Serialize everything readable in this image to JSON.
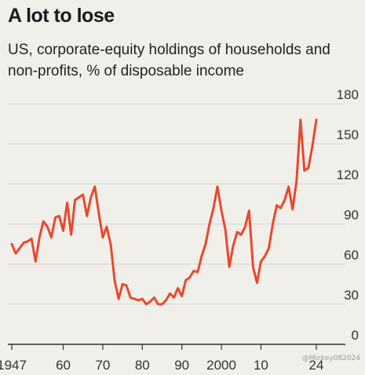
{
  "header": {
    "title": "A lot to lose",
    "subtitle": "US, corporate-equity holdings of households and non-profits, % of disposable income"
  },
  "watermark": "@Mickey082024",
  "colors": {
    "line": "#e8492e",
    "grid": "#d6d6d6",
    "axis": "#333333",
    "background": "#f1efea"
  },
  "chart_data": {
    "type": "line",
    "title": "A lot to lose",
    "subtitle": "US, corporate-equity holdings of households and non-profits, % of disposable income",
    "xlabel": "",
    "ylabel": "",
    "xlim": [
      1946,
      2025
    ],
    "ylim": [
      0,
      180
    ],
    "y_ticks": [
      0,
      30,
      60,
      90,
      120,
      150,
      180
    ],
    "y_axis_side": "right",
    "x_ticks": [
      {
        "value": 1947,
        "label": "1947"
      },
      {
        "value": 1960,
        "label": "60"
      },
      {
        "value": 1970,
        "label": "70"
      },
      {
        "value": 1980,
        "label": "80"
      },
      {
        "value": 1990,
        "label": "90"
      },
      {
        "value": 2000,
        "label": "2000"
      },
      {
        "value": 2010,
        "label": "10"
      },
      {
        "value": 2024,
        "label": "24"
      }
    ],
    "grid": "horizontal",
    "series": [
      {
        "x": [
          1947,
          1948,
          1949,
          1950,
          1951,
          1952,
          1953,
          1954,
          1955,
          1956,
          1957,
          1958,
          1959,
          1960,
          1961,
          1962,
          1963,
          1964,
          1965,
          1966,
          1967,
          1968,
          1969,
          1970,
          1971,
          1972,
          1973,
          1974,
          1975,
          1976,
          1977,
          1978,
          1979,
          1980,
          1981,
          1982,
          1983,
          1984,
          1985,
          1986,
          1987,
          1988,
          1989,
          1990,
          1991,
          1992,
          1993,
          1994,
          1995,
          1996,
          1997,
          1998,
          1999,
          2000,
          2001,
          2002,
          2003,
          2004,
          2005,
          2006,
          2007,
          2008,
          2009,
          2010,
          2011,
          2012,
          2013,
          2014,
          2015,
          2016,
          2017,
          2018,
          2019,
          2020,
          2021,
          2022,
          2023,
          2024
        ],
        "values": [
          75,
          68,
          72,
          76,
          77,
          79,
          62,
          80,
          92,
          88,
          80,
          95,
          96,
          85,
          106,
          82,
          108,
          110,
          112,
          96,
          110,
          118,
          98,
          80,
          88,
          75,
          48,
          34,
          45,
          44,
          35,
          34,
          33,
          34,
          30,
          32,
          35,
          30,
          30,
          33,
          38,
          35,
          42,
          36,
          48,
          50,
          55,
          54,
          66,
          75,
          90,
          102,
          118,
          100,
          86,
          58,
          74,
          84,
          82,
          88,
          100,
          58,
          46,
          62,
          66,
          72,
          90,
          104,
          102,
          108,
          118,
          101,
          122,
          168,
          130,
          132,
          148,
          168
        ]
      }
    ]
  }
}
